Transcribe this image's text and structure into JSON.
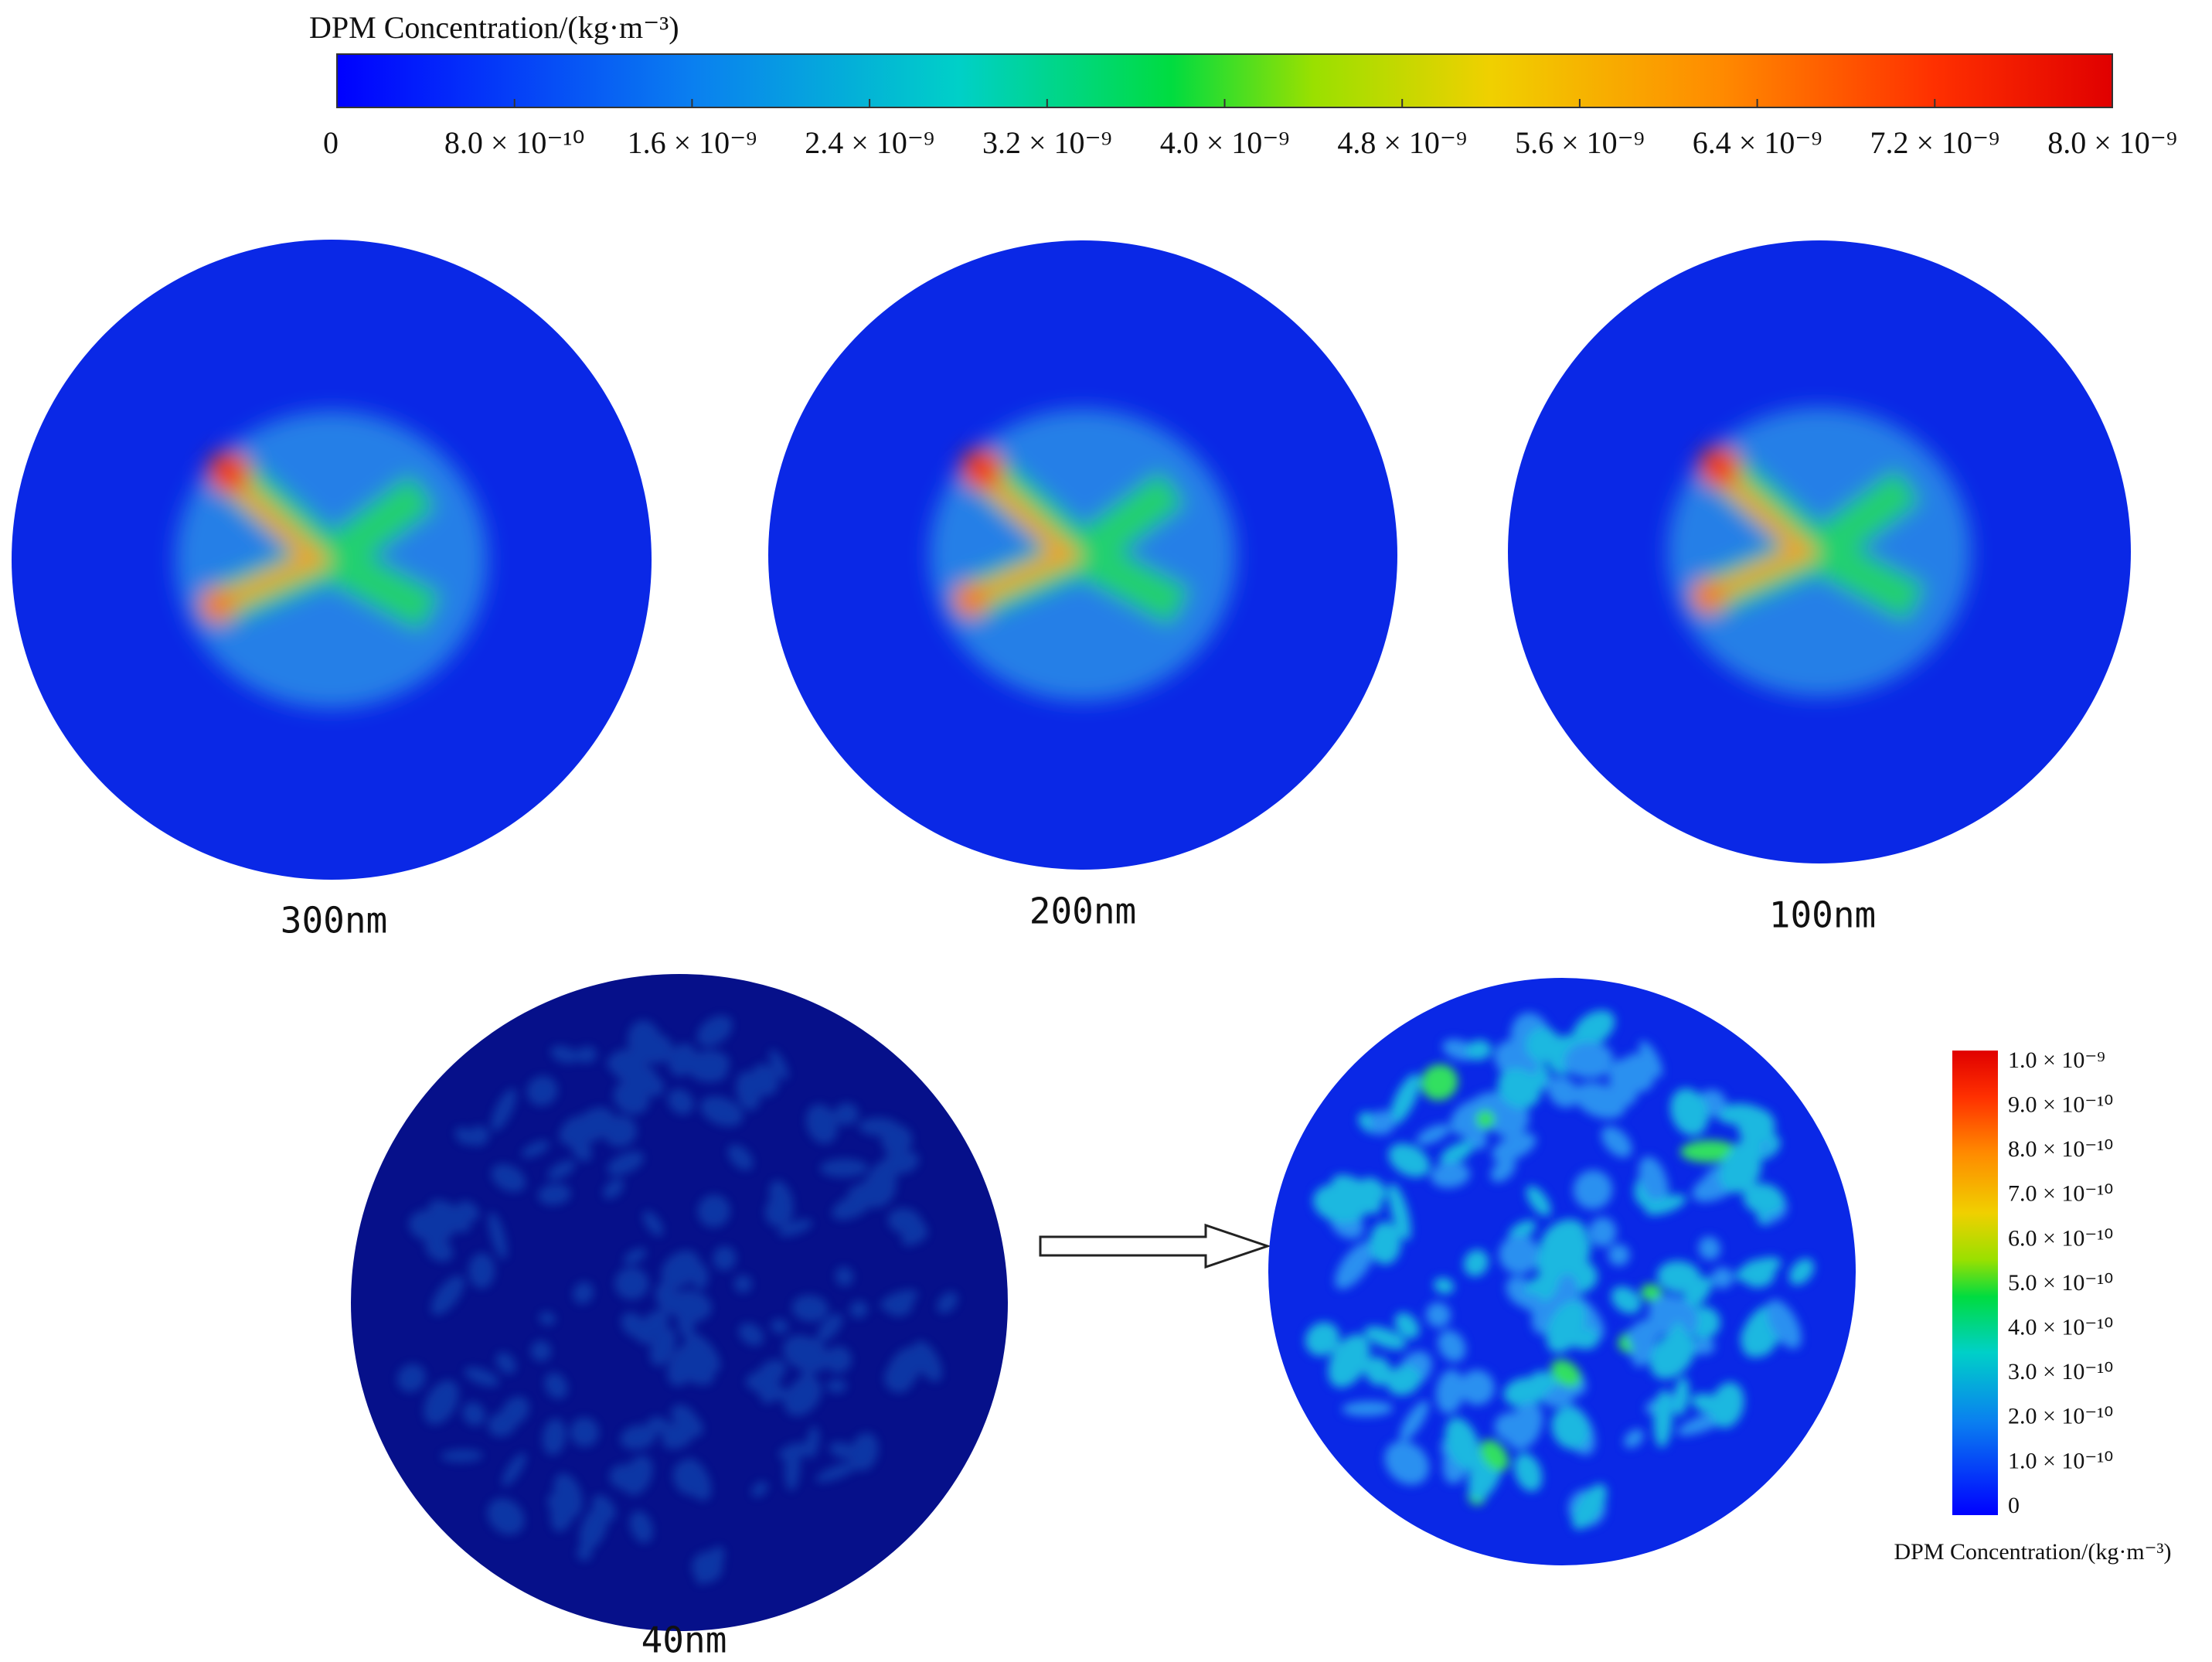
{
  "top_colorbar": {
    "title": "DPM Concentration/(kg·m⁻³)",
    "tick_labels": [
      "0",
      "8.0 × 10⁻¹⁰",
      "1.6 × 10⁻⁹",
      "2.4 × 10⁻⁹",
      "3.2 × 10⁻⁹",
      "4.0 × 10⁻⁹",
      "4.8 × 10⁻⁹",
      "5.6 × 10⁻⁹",
      "6.4 × 10⁻⁹",
      "7.2 × 10⁻⁹",
      "8.0 × 10⁻⁹"
    ]
  },
  "panels": [
    {
      "label": "300nm"
    },
    {
      "label": "200nm"
    },
    {
      "label": "100nm"
    },
    {
      "label": "40nm"
    }
  ],
  "inset_colorbar": {
    "title": "DPM Concentration/(kg·m⁻³)",
    "tick_labels": [
      "1.0 × 10⁻⁹",
      "9.0 × 10⁻¹⁰",
      "8.0 × 10⁻¹⁰",
      "7.0 × 10⁻¹⁰",
      "6.0 × 10⁻¹⁰",
      "5.0 × 10⁻¹⁰",
      "4.0 × 10⁻¹⁰",
      "3.0 × 10⁻¹⁰",
      "2.0 × 10⁻¹⁰",
      "1.0 × 10⁻¹⁰",
      "0"
    ]
  }
}
